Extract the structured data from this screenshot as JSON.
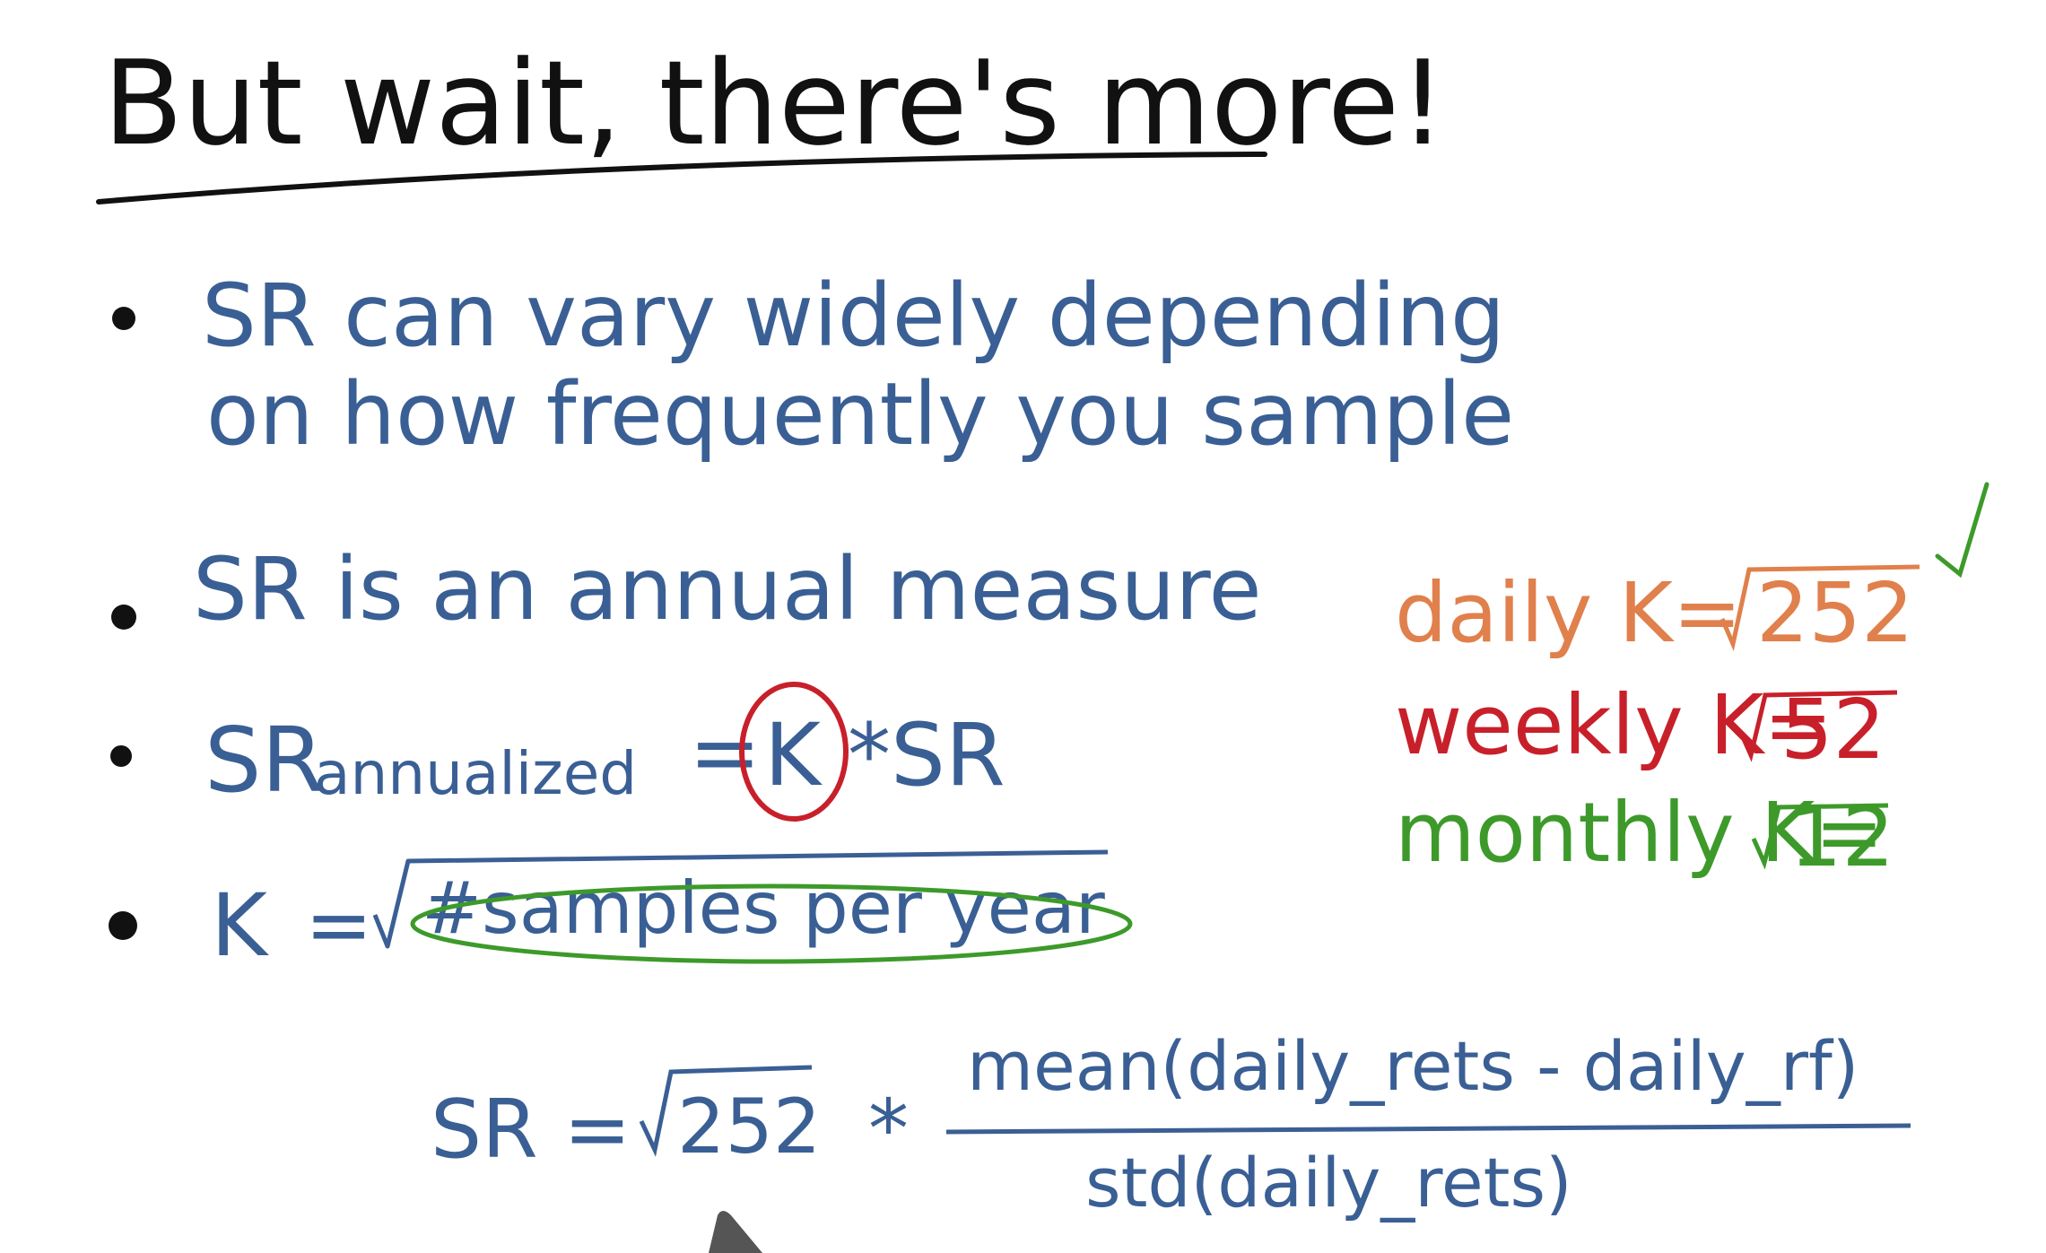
{
  "title": "But wait, there's more!",
  "bullets": [
    {
      "line1": "SR can vary widely depending",
      "line2": "on how frequently you sample"
    },
    {
      "line1": "SR is an annual measure"
    },
    {
      "sr": "SR",
      "sub": "annualized",
      "eq": "=",
      "k": "K",
      "times": "*SR"
    },
    {
      "k": "K",
      "eq": "=",
      "samples": "#samples per year"
    }
  ],
  "sidebar": {
    "daily": {
      "label": "daily K=",
      "value": "252"
    },
    "weekly": {
      "label": "weekly K=",
      "value": "52"
    },
    "monthly": {
      "label": "monthly K=",
      "value": "12"
    }
  },
  "formula": {
    "lhs": "SR =",
    "root": "252",
    "times": "*",
    "numerator": "mean(daily_rets - daily_rf)",
    "denominator": "std(daily_rets)"
  },
  "colors": {
    "blue_ink": "#3a5f94",
    "black_ink": "#111111",
    "orange_ink": "#e0804c",
    "red_ink": "#c8202a",
    "green_ink": "#3d9a2a"
  }
}
